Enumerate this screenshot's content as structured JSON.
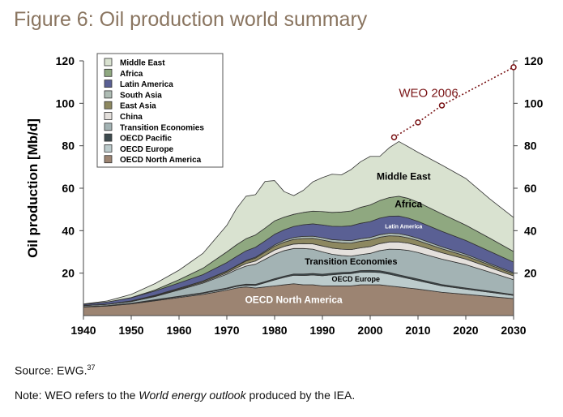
{
  "title": "Figure 6: Oil production world summary",
  "source": {
    "text": "Source: EWG.",
    "sup": "37"
  },
  "note": {
    "prefix": "Note: WEO refers to the ",
    "italic": "World energy outlook",
    "suffix": " produced by the IEA."
  },
  "chart_data": {
    "type": "area",
    "stacked": true,
    "ylabel": "Oil production [Mb/d]",
    "xlim": [
      1940,
      2030
    ],
    "ylim": [
      0,
      120
    ],
    "x_ticks": [
      1940,
      1950,
      1960,
      1970,
      1980,
      1990,
      2000,
      2010,
      2020,
      2030
    ],
    "y_ticks": [
      20,
      40,
      60,
      80,
      100,
      120
    ],
    "x": [
      1940,
      1945,
      1950,
      1955,
      1960,
      1965,
      1970,
      1972,
      1974,
      1976,
      1978,
      1980,
      1982,
      1984,
      1986,
      1988,
      1990,
      1992,
      1994,
      1996,
      1998,
      2000,
      2002,
      2004,
      2006,
      2008,
      2010,
      2015,
      2020,
      2025,
      2030
    ],
    "series": [
      {
        "name": "OECD North America",
        "color": "#9c8472",
        "values": [
          4,
          4.5,
          5.5,
          7,
          8.5,
          10,
          12,
          13,
          13.5,
          13,
          13.5,
          14,
          14.5,
          15,
          14.5,
          14.5,
          14,
          14,
          14,
          14,
          14.5,
          14.5,
          14.5,
          14,
          13.5,
          13,
          12.5,
          11,
          10,
          9,
          8
        ]
      },
      {
        "name": "OECD Europe",
        "color": "#bccbcc",
        "values": [
          0.1,
          0.1,
          0.2,
          0.3,
          0.4,
          0.5,
          0.6,
          0.7,
          0.8,
          1.2,
          2.0,
          2.8,
          3.5,
          4.0,
          4.4,
          4.6,
          4.8,
          5.2,
          5.6,
          5.8,
          6.0,
          6.0,
          5.8,
          5.5,
          5.0,
          4.5,
          4.0,
          3.0,
          2.5,
          2.0,
          1.5
        ]
      },
      {
        "name": "OECD Pacific",
        "color": "#3d4a4e",
        "values": [
          0.1,
          0.1,
          0.1,
          0.2,
          0.2,
          0.3,
          0.4,
          0.4,
          0.5,
          0.5,
          0.5,
          0.6,
          0.6,
          0.6,
          0.7,
          0.7,
          0.7,
          0.7,
          0.7,
          0.7,
          0.7,
          0.8,
          0.8,
          0.8,
          0.7,
          0.7,
          0.7,
          0.6,
          0.5,
          0.5,
          0.4
        ]
      },
      {
        "name": "Transition Economies",
        "color": "#a3b3b4",
        "values": [
          0.5,
          0.6,
          0.8,
          1.5,
          3,
          4.5,
          6.5,
          7.5,
          8.5,
          9.5,
          10.5,
          11.5,
          12,
          12,
          12,
          11.5,
          10.5,
          9,
          8,
          7.5,
          7.5,
          8,
          9.5,
          11,
          12,
          12.5,
          12.5,
          12,
          11,
          9,
          7
        ]
      },
      {
        "name": "China",
        "color": "#e4e0dc",
        "values": [
          0,
          0,
          0.1,
          0.2,
          0.3,
          0.4,
          0.6,
          0.8,
          1.2,
          1.5,
          1.8,
          2.0,
          2.0,
          2.1,
          2.3,
          2.5,
          2.8,
          2.9,
          3.0,
          3.1,
          3.2,
          3.2,
          3.3,
          3.4,
          3.5,
          3.4,
          3.3,
          3.0,
          2.6,
          2.2,
          1.8
        ]
      },
      {
        "name": "East Asia",
        "color": "#8d8860",
        "values": [
          0.1,
          0.1,
          0.2,
          0.3,
          0.4,
          0.5,
          0.7,
          0.9,
          1.2,
          1.4,
          1.6,
          1.8,
          2.0,
          2.2,
          2.4,
          2.6,
          2.8,
          2.9,
          3.0,
          3.0,
          3.1,
          3.1,
          3.0,
          2.9,
          2.7,
          2.5,
          2.3,
          1.9,
          1.5,
          1.2,
          1.0
        ]
      },
      {
        "name": "South Asia",
        "color": "#aebcb4",
        "values": [
          0,
          0,
          0,
          0.1,
          0.1,
          0.1,
          0.2,
          0.2,
          0.3,
          0.4,
          0.5,
          0.6,
          0.8,
          0.9,
          1.0,
          1.0,
          1.1,
          1.1,
          1.2,
          1.2,
          1.2,
          1.2,
          1.2,
          1.2,
          1.2,
          1.1,
          1.1,
          0.9,
          0.8,
          0.6,
          0.5
        ]
      },
      {
        "name": "Latin America",
        "color": "#5a6094",
        "values": [
          0.5,
          1,
          1.5,
          2,
          2.5,
          3,
          4,
          4.3,
          4.5,
          4.7,
          4.8,
          5,
          5,
          5.2,
          5.5,
          5.8,
          6,
          6.3,
          6.5,
          7,
          7.3,
          7.5,
          7.8,
          8,
          8.3,
          8.2,
          8,
          7.3,
          6.5,
          5.8,
          5
        ]
      },
      {
        "name": "Africa",
        "color": "#8fa880",
        "values": [
          0,
          0,
          0.1,
          0.5,
          1.5,
          3,
          5,
          5.5,
          5.7,
          5.8,
          6,
          6.3,
          6,
          5.7,
          5.8,
          6,
          6.3,
          6.5,
          6.8,
          7,
          7.5,
          7.8,
          8.3,
          8.8,
          9.3,
          9.3,
          9,
          8.2,
          7.2,
          6.2,
          5
        ]
      },
      {
        "name": "Middle East",
        "color": "#d9e2d0",
        "values": [
          0.2,
          0.5,
          1.5,
          3,
          4.5,
          7,
          12.5,
          17,
          20,
          19,
          22,
          19,
          12,
          8.8,
          10.4,
          13.8,
          16,
          18,
          17.5,
          19.5,
          21.5,
          22.9,
          20.8,
          23.5,
          25.8,
          24.3,
          23.5,
          23,
          22,
          18.5,
          16
        ]
      }
    ],
    "weo_2006": {
      "name": "WEO 2006",
      "x": [
        2005,
        2010,
        2015,
        2030
      ],
      "y": [
        84,
        91,
        99,
        117
      ],
      "color": "#7a1416"
    },
    "annotations": [
      {
        "text": "Middle East",
        "x": 2007,
        "y": 64
      },
      {
        "text": "Africa",
        "x": 2008,
        "y": 51
      },
      {
        "text": "Latin America",
        "x": 2007,
        "y": 41
      },
      {
        "text": "Transition Economies",
        "x": 1996,
        "y": 24
      },
      {
        "text": "OECD Europe",
        "x": 1997,
        "y": 16
      },
      {
        "text": "OECD North America",
        "x": 1984,
        "y": 6
      }
    ],
    "legend_position": "top-left",
    "legend_order": [
      "Middle East",
      "Africa",
      "Latin America",
      "South Asia",
      "East Asia",
      "China",
      "Transition Economies",
      "OECD Pacific",
      "OECD Europe",
      "OECD North America"
    ],
    "grid": false
  }
}
